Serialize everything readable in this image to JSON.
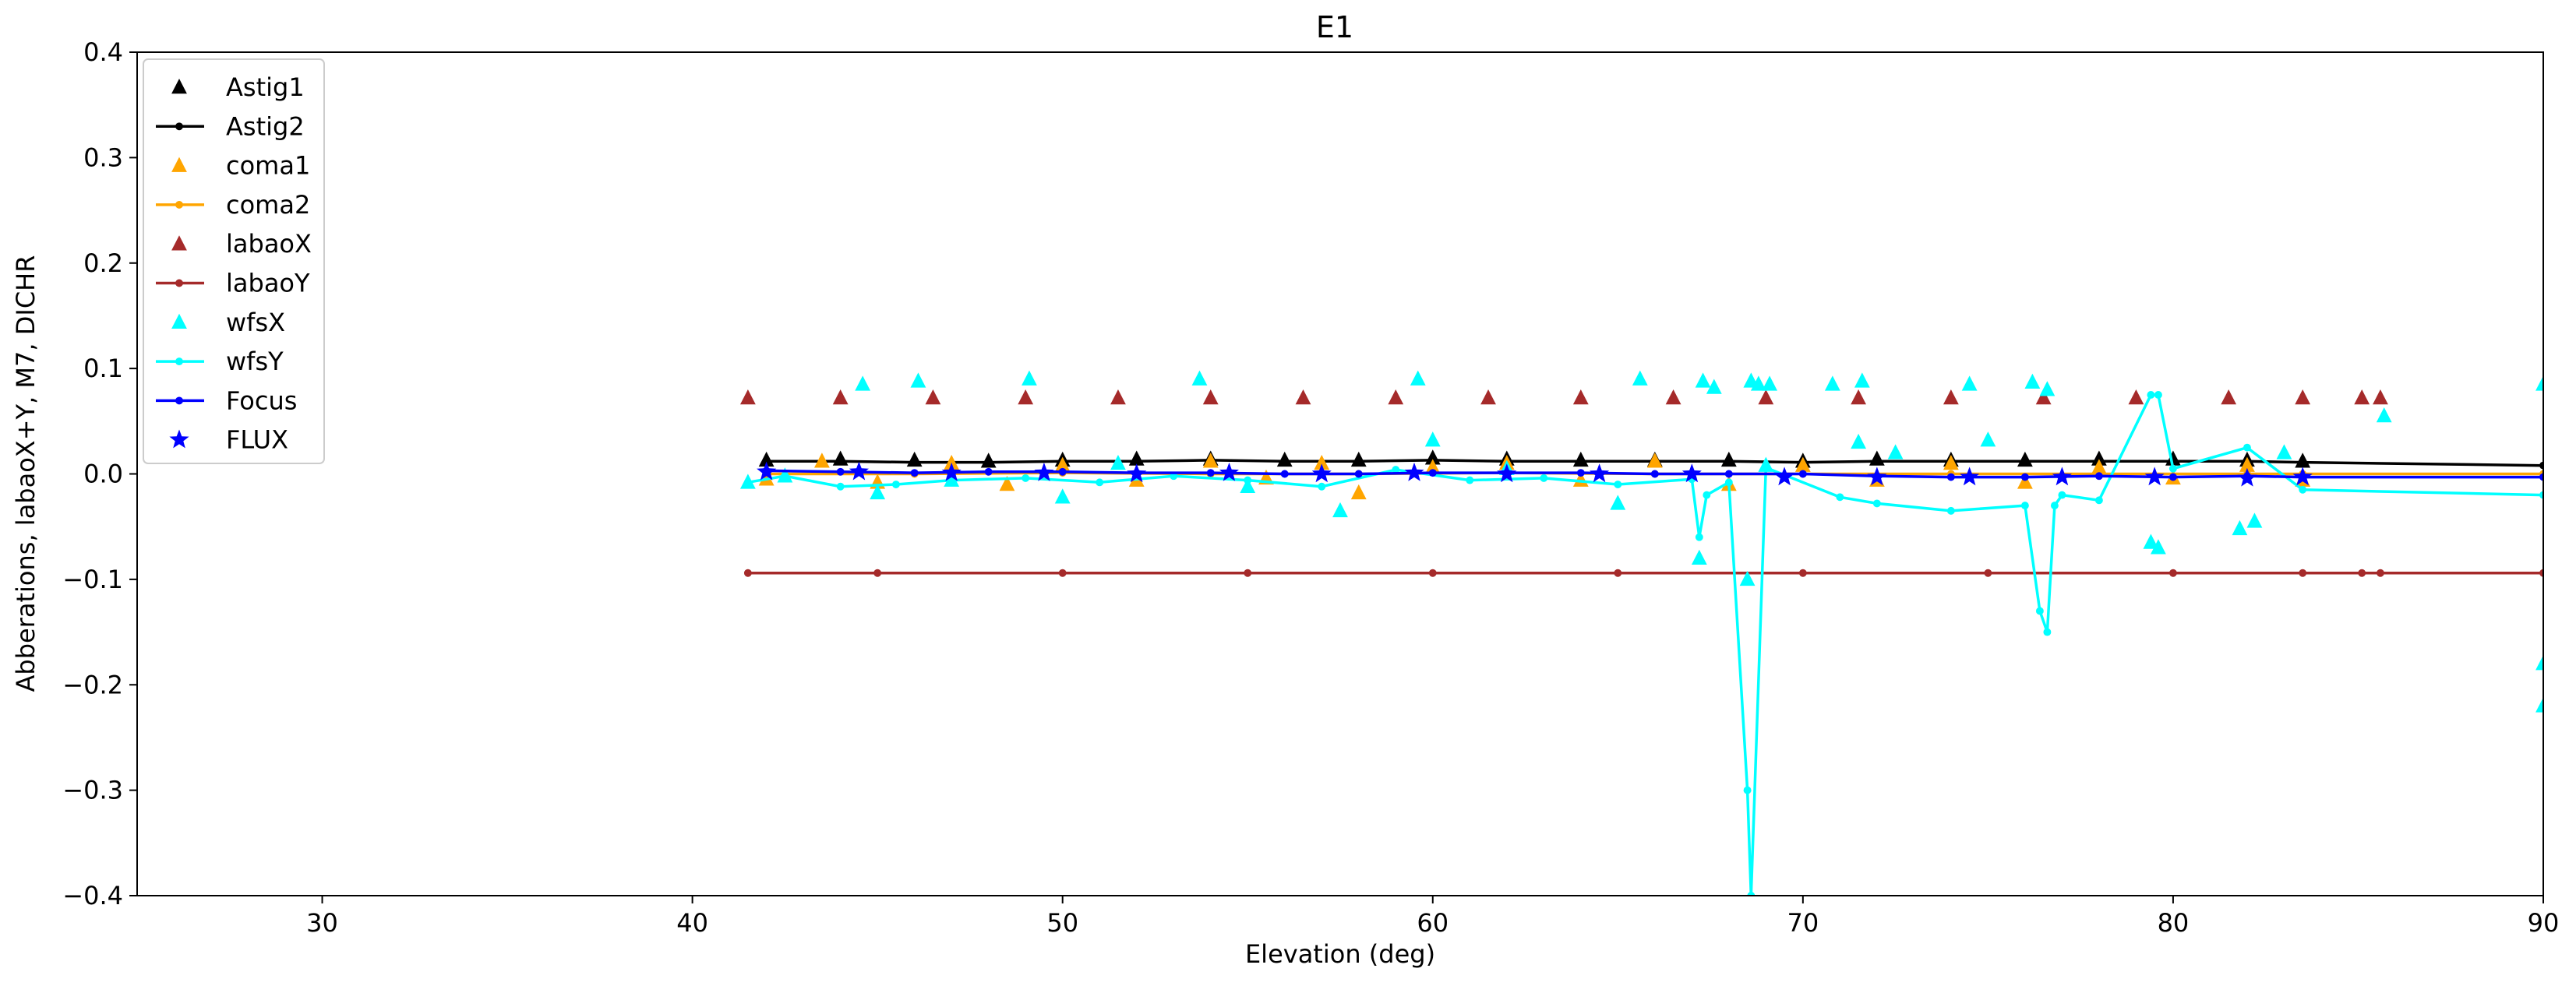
{
  "chart_data": {
    "type": "scatter",
    "title": "E1",
    "xlabel": "Elevation (deg)",
    "ylabel": "Abberations, labaoX+Y, M7, DICHR",
    "xlim": [
      25,
      90
    ],
    "ylim": [
      -0.4,
      0.4
    ],
    "xticks": [
      30,
      40,
      50,
      60,
      70,
      80,
      90
    ],
    "xtick_labels": [
      "30",
      "40",
      "50",
      "60",
      "70",
      "80",
      "90"
    ],
    "yticks": [
      -0.4,
      -0.3,
      -0.2,
      -0.1,
      0.0,
      0.1,
      0.2,
      0.3,
      0.4
    ],
    "ytick_labels": [
      "−0.4",
      "−0.3",
      "−0.2",
      "−0.1",
      "0.0",
      "0.1",
      "0.2",
      "0.3",
      "0.4"
    ],
    "grid": false,
    "legend_position": "upper-left",
    "series": [
      {
        "name": "Astig1",
        "color": "#000000",
        "marker": "triangle",
        "line": false,
        "x": [
          42.0,
          44.0,
          46.0,
          48.0,
          50.0,
          52.0,
          54.0,
          56.0,
          58.0,
          60.0,
          62.0,
          64.0,
          66.0,
          68.0,
          70.0,
          72.0,
          74.0,
          76.0,
          78.0,
          80.0,
          82.0,
          83.5
        ],
        "y": [
          0.013,
          0.014,
          0.013,
          0.012,
          0.013,
          0.014,
          0.014,
          0.013,
          0.013,
          0.015,
          0.014,
          0.013,
          0.013,
          0.013,
          0.012,
          0.014,
          0.013,
          0.013,
          0.014,
          0.014,
          0.013,
          0.012
        ]
      },
      {
        "name": "Astig2",
        "color": "#000000",
        "marker": "dot",
        "line": true,
        "x": [
          42.0,
          44.0,
          46.0,
          48.0,
          50.0,
          52.0,
          54.0,
          56.0,
          58.0,
          60.0,
          62.0,
          64.0,
          66.0,
          68.0,
          70.0,
          72.0,
          74.0,
          76.0,
          78.0,
          80.0,
          82.0,
          83.5,
          90.0
        ],
        "y": [
          0.012,
          0.012,
          0.011,
          0.011,
          0.012,
          0.012,
          0.013,
          0.012,
          0.012,
          0.013,
          0.012,
          0.012,
          0.012,
          0.012,
          0.011,
          0.012,
          0.012,
          0.012,
          0.012,
          0.012,
          0.012,
          0.011,
          0.008
        ]
      },
      {
        "name": "coma1",
        "color": "#ffa500",
        "marker": "triangle",
        "line": false,
        "x": [
          42.0,
          43.5,
          45.0,
          47.0,
          48.5,
          50.0,
          52.0,
          54.0,
          55.5,
          57.0,
          58.0,
          60.0,
          62.0,
          64.0,
          66.0,
          68.0,
          70.0,
          72.0,
          74.0,
          76.0,
          78.0,
          80.0,
          82.0,
          83.5
        ],
        "y": [
          -0.005,
          0.012,
          -0.008,
          0.01,
          -0.01,
          0.008,
          -0.006,
          0.012,
          -0.004,
          0.01,
          -0.018,
          0.006,
          0.01,
          -0.006,
          0.012,
          -0.01,
          0.008,
          -0.006,
          0.01,
          -0.008,
          0.006,
          -0.004,
          0.008,
          -0.006
        ]
      },
      {
        "name": "coma2",
        "color": "#ffa500",
        "marker": "dot",
        "line": true,
        "x": [
          42.0,
          46.0,
          50.0,
          54.0,
          58.0,
          62.0,
          66.0,
          70.0,
          74.0,
          78.0,
          82.0,
          83.5,
          90.0
        ],
        "y": [
          0.0,
          0.0,
          0.001,
          0.0,
          0.0,
          0.001,
          0.0,
          0.0,
          0.0,
          0.0,
          0.0,
          0.0,
          0.0
        ]
      },
      {
        "name": "labaoX",
        "color": "#a52a2a",
        "marker": "triangle",
        "line": false,
        "x": [
          41.5,
          44.0,
          46.5,
          49.0,
          51.5,
          54.0,
          56.5,
          59.0,
          61.5,
          64.0,
          66.5,
          69.0,
          71.5,
          74.0,
          76.5,
          79.0,
          81.5,
          83.5,
          85.1,
          85.6
        ],
        "y": [
          0.072,
          0.072,
          0.072,
          0.072,
          0.072,
          0.072,
          0.072,
          0.072,
          0.072,
          0.072,
          0.072,
          0.072,
          0.072,
          0.072,
          0.072,
          0.072,
          0.072,
          0.072,
          0.072,
          0.072
        ]
      },
      {
        "name": "labaoY",
        "color": "#a52a2a",
        "marker": "dot",
        "line": true,
        "x": [
          41.5,
          45.0,
          50.0,
          55.0,
          60.0,
          65.0,
          70.0,
          75.0,
          80.0,
          83.5,
          85.1,
          85.6,
          90.0
        ],
        "y": [
          -0.094,
          -0.094,
          -0.094,
          -0.094,
          -0.094,
          -0.094,
          -0.094,
          -0.094,
          -0.094,
          -0.094,
          -0.094,
          -0.094,
          -0.094
        ]
      },
      {
        "name": "wfsX",
        "color": "#00ffff",
        "marker": "triangle",
        "line": false,
        "x": [
          44.6,
          46.1,
          49.1,
          53.7,
          59.6,
          65.6,
          67.3,
          67.6,
          68.6,
          68.8,
          69.1,
          70.8,
          71.6,
          74.5,
          76.2,
          76.6,
          41.5,
          42.5,
          45.0,
          47.0,
          50.0,
          51.5,
          55.0,
          57.5,
          60.0,
          62.0,
          65.0,
          67.2,
          68.5,
          69.0,
          71.5,
          72.5,
          75.0,
          79.4,
          79.6,
          81.8,
          82.2,
          83.0,
          85.7,
          90.0,
          90.0,
          90.0
        ],
        "y": [
          0.085,
          0.088,
          0.09,
          0.09,
          0.09,
          0.09,
          0.088,
          0.082,
          0.088,
          0.085,
          0.085,
          0.085,
          0.088,
          0.085,
          0.087,
          0.08,
          -0.008,
          -0.002,
          -0.018,
          -0.006,
          -0.022,
          0.01,
          -0.012,
          -0.035,
          0.032,
          0.005,
          -0.028,
          -0.08,
          -0.1,
          0.008,
          0.03,
          0.02,
          0.032,
          -0.065,
          -0.07,
          -0.052,
          -0.045,
          0.02,
          0.055,
          0.085,
          -0.18,
          -0.22
        ]
      },
      {
        "name": "wfsY",
        "color": "#00ffff",
        "marker": "dot",
        "line": true,
        "x": [
          41.5,
          42.5,
          44.0,
          45.5,
          47.0,
          49.0,
          51.0,
          53.0,
          55.0,
          57.0,
          59.0,
          61.0,
          63.0,
          65.0,
          67.0,
          67.2,
          67.4,
          68.0,
          68.5,
          68.6,
          69.0,
          71.0,
          72.0,
          74.0,
          76.0,
          76.4,
          76.6,
          76.8,
          77.0,
          78.0,
          79.4,
          79.6,
          80.0,
          82.0,
          83.5,
          90.0
        ],
        "y": [
          -0.008,
          -0.002,
          -0.012,
          -0.01,
          -0.006,
          -0.004,
          -0.008,
          -0.002,
          -0.006,
          -0.012,
          0.004,
          -0.006,
          -0.004,
          -0.01,
          -0.005,
          -0.06,
          -0.02,
          -0.008,
          -0.3,
          -0.4,
          0.006,
          -0.022,
          -0.028,
          -0.035,
          -0.03,
          -0.13,
          -0.15,
          -0.03,
          -0.02,
          -0.025,
          0.075,
          0.075,
          0.005,
          0.025,
          -0.015,
          -0.02
        ]
      },
      {
        "name": "Focus",
        "color": "#0000ff",
        "marker": "dot",
        "line": true,
        "x": [
          42.0,
          44.0,
          46.0,
          48.0,
          50.0,
          52.0,
          54.0,
          56.0,
          58.0,
          60.0,
          62.0,
          64.0,
          66.0,
          68.0,
          70.0,
          72.0,
          74.0,
          76.0,
          78.0,
          80.0,
          82.0,
          83.5,
          90.0
        ],
        "y": [
          0.003,
          0.002,
          0.001,
          0.002,
          0.002,
          0.001,
          0.001,
          0.0,
          0.0,
          0.001,
          0.001,
          0.001,
          0.0,
          0.0,
          0.0,
          -0.002,
          -0.003,
          -0.003,
          -0.002,
          -0.003,
          -0.002,
          -0.003,
          -0.003
        ]
      },
      {
        "name": "FLUX",
        "color": "#0000ff",
        "marker": "star",
        "line": false,
        "x": [
          42.0,
          44.5,
          47.0,
          49.5,
          52.0,
          54.5,
          57.0,
          59.5,
          62.0,
          64.5,
          67.0,
          69.5,
          72.0,
          74.5,
          77.0,
          79.5,
          82.0,
          83.5
        ],
        "y": [
          0.002,
          0.002,
          0.001,
          0.001,
          0.0,
          0.001,
          0.0,
          0.001,
          0.0,
          0.0,
          0.0,
          -0.003,
          -0.003,
          -0.003,
          -0.003,
          -0.003,
          -0.004,
          -0.003
        ]
      }
    ]
  }
}
